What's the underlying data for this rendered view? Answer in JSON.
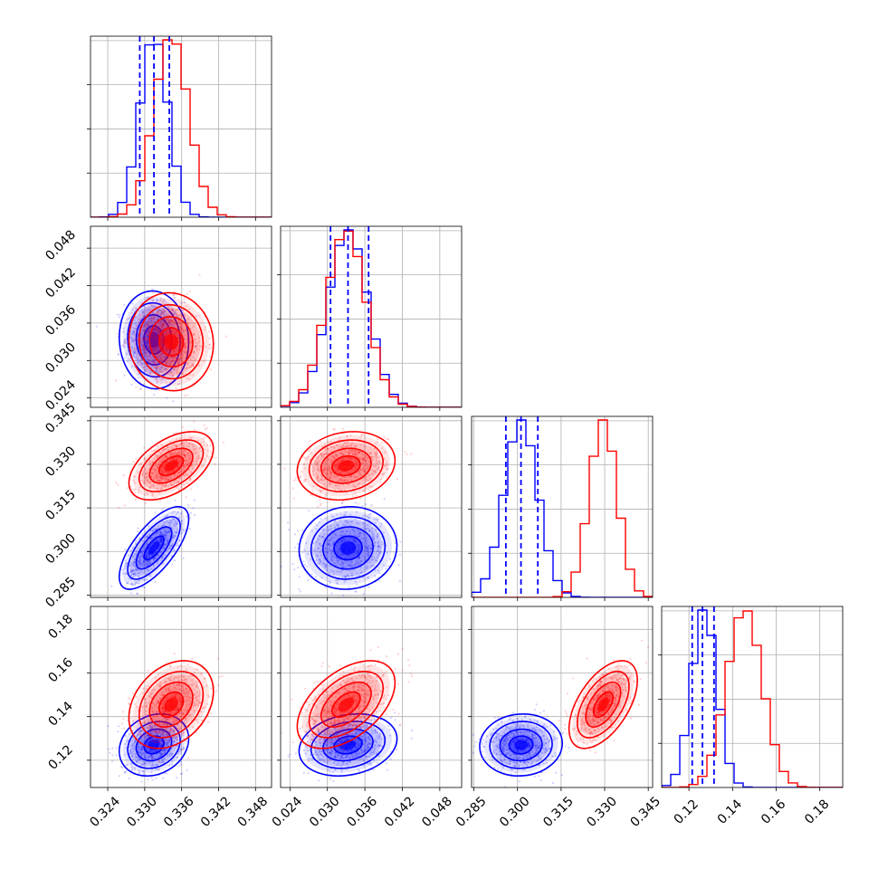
{
  "chart_data": {
    "type": "corner",
    "grid": true,
    "parameters": [
      {
        "ticks": [
          "0.324",
          "0.330",
          "0.336",
          "0.342",
          "0.348"
        ],
        "range": [
          0.3212,
          0.3506
        ],
        "tick_values": [
          0.324,
          0.33,
          0.336,
          0.342,
          0.348
        ]
      },
      {
        "ticks": [
          "0.024",
          "0.030",
          "0.036",
          "0.042",
          "0.048"
        ],
        "range": [
          0.0225,
          0.0515
        ],
        "tick_values": [
          0.024,
          0.03,
          0.036,
          0.042,
          0.048
        ]
      },
      {
        "ticks": [
          "0.285",
          "0.300",
          "0.315",
          "0.330",
          "0.345"
        ],
        "range": [
          0.2842,
          0.3465
        ],
        "tick_values": [
          0.285,
          0.3,
          0.315,
          0.33,
          0.345
        ]
      },
      {
        "ticks": [
          "0.12",
          "0.14",
          "0.16",
          "0.18"
        ],
        "range": [
          0.1075,
          0.1905
        ],
        "tick_values": [
          0.12,
          0.14,
          0.16,
          0.18
        ]
      }
    ],
    "series": [
      {
        "color": "#0000ff",
        "mean": [
          0.3315,
          0.0333,
          0.3012,
          0.127
        ],
        "sd": [
          0.0023,
          0.0032,
          0.0058,
          0.0058
        ],
        "corr": [
          [
            1,
            -0.05,
            0.7,
            0.2
          ],
          [
            -0.05,
            1,
            0.05,
            0.2
          ],
          [
            0.7,
            0.05,
            1,
            0.05
          ],
          [
            0.2,
            0.2,
            0.05,
            1
          ]
        ],
        "quantiles": [
          [
            0.3292,
            0.3315,
            0.334
          ],
          [
            0.0305,
            0.0333,
            0.0366
          ],
          [
            0.296,
            0.3012,
            0.307
          ],
          [
            0.1215,
            0.1262,
            0.1315
          ]
        ]
      },
      {
        "color": "#ff0000",
        "mean": [
          0.3343,
          0.033,
          0.3295,
          0.1455
        ],
        "sd": [
          0.0028,
          0.0032,
          0.0048,
          0.0082
        ],
        "corr": [
          [
            1,
            -0.05,
            0.5,
            0.3
          ],
          [
            -0.05,
            1,
            0.15,
            0.5
          ],
          [
            0.5,
            0.15,
            1,
            0.55
          ],
          [
            0.3,
            0.5,
            0.55,
            1
          ]
        ]
      }
    ],
    "quantile_lines": {
      "color": "#0000ff",
      "style": "dashed"
    }
  }
}
